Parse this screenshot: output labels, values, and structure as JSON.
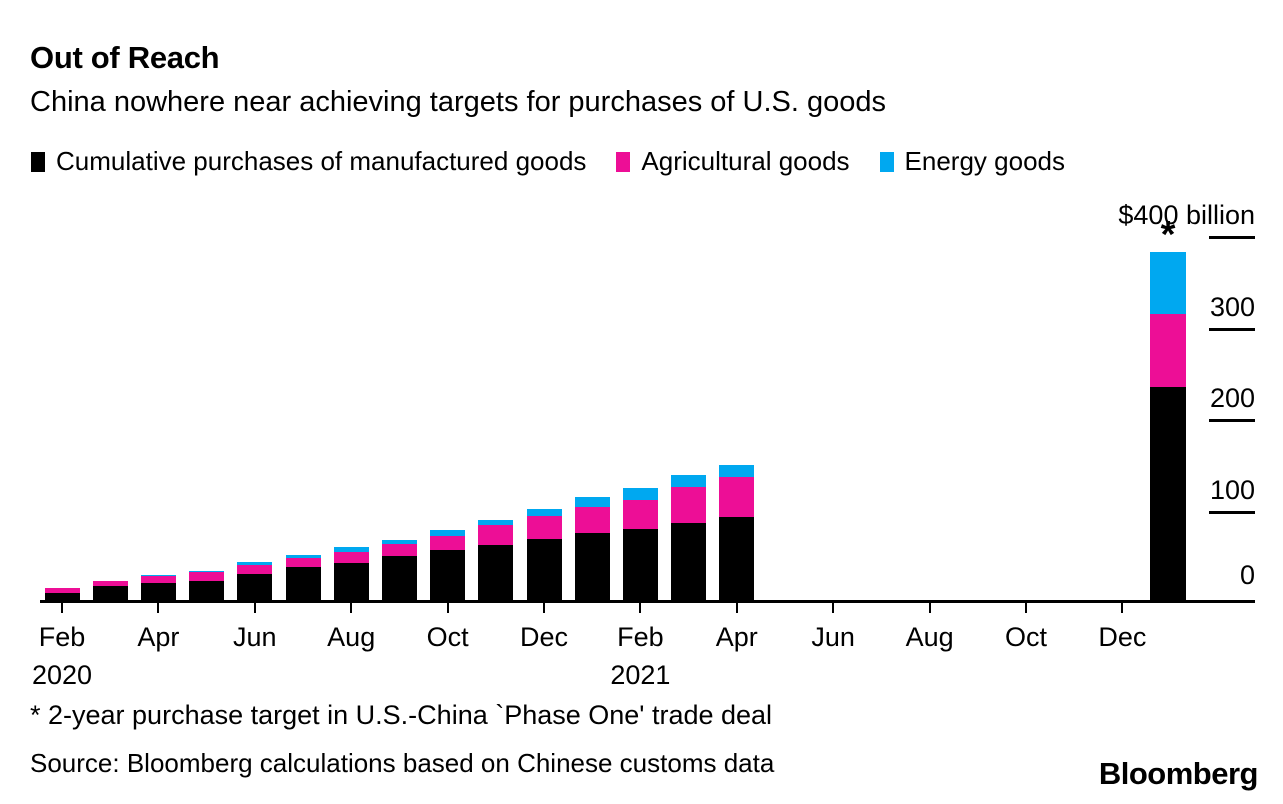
{
  "header": {
    "title": "Out of Reach",
    "subtitle": "China nowhere near achieving targets for purchases of U.S. goods"
  },
  "legend": {
    "items": [
      {
        "label": "Cumulative purchases of manufactured goods",
        "color": "#000000"
      },
      {
        "label": "Agricultural goods",
        "color": "#ed0e96"
      },
      {
        "label": "Energy goods",
        "color": "#00a8f0"
      }
    ]
  },
  "axis": {
    "top_label": "$400 billion",
    "yticks": [
      400,
      300,
      200,
      100
    ],
    "zero_label": "0",
    "x_ticks": [
      "Feb",
      "Apr",
      "Jun",
      "Aug",
      "Oct",
      "Dec",
      "Feb",
      "Apr",
      "Jun",
      "Aug",
      "Oct",
      "Dec"
    ],
    "year_2020": "2020",
    "year_2021": "2021"
  },
  "target_marker": "*",
  "footer": {
    "footnote": "* 2-year purchase target in U.S.-China `Phase One' trade deal",
    "source": "Source: Bloomberg calculations based on Chinese customs data",
    "logo": "Bloomberg"
  },
  "chart_data": {
    "type": "bar",
    "stacked": true,
    "title": "Out of Reach",
    "subtitle": "China nowhere near achieving targets for purchases of U.S. goods",
    "unit": "USD billions",
    "ylim": [
      0,
      400
    ],
    "yticks": [
      0,
      100,
      200,
      300,
      400
    ],
    "legend_position": "top",
    "grid": false,
    "categories": [
      "Feb 2020",
      "Mar 2020",
      "Apr 2020",
      "May 2020",
      "Jun 2020",
      "Jul 2020",
      "Aug 2020",
      "Sep 2020",
      "Oct 2020",
      "Nov 2020",
      "Dec 2020",
      "Jan 2021",
      "Feb 2021",
      "Mar 2021",
      "Apr 2021"
    ],
    "series": [
      {
        "name": "Cumulative purchases of manufactured goods",
        "color": "#000000",
        "values": [
          8,
          15,
          19,
          21,
          28.5,
          36,
          41,
          48,
          55,
          60.5,
          67,
          73,
          77.5,
          84,
          90.5
        ]
      },
      {
        "name": "Agricultural goods",
        "color": "#ed0e96",
        "values": [
          5,
          5.5,
          7.5,
          9.5,
          9.5,
          9.5,
          12,
          13,
          15.5,
          21,
          25,
          29,
          32,
          40,
          44
        ]
      },
      {
        "name": "Energy goods",
        "color": "#00a8f0",
        "values": [
          0,
          0,
          0.5,
          1,
          3.5,
          3.5,
          4.5,
          5,
          6,
          6.5,
          8,
          11,
          12.5,
          13,
          13.5
        ]
      }
    ],
    "target_bar": {
      "label": "2-year purchase target in U.S.-China `Phase One' trade deal",
      "marker": "*",
      "values": {
        "manufactured": 233,
        "agricultural": 80,
        "energy": 67
      },
      "total": 380
    }
  }
}
